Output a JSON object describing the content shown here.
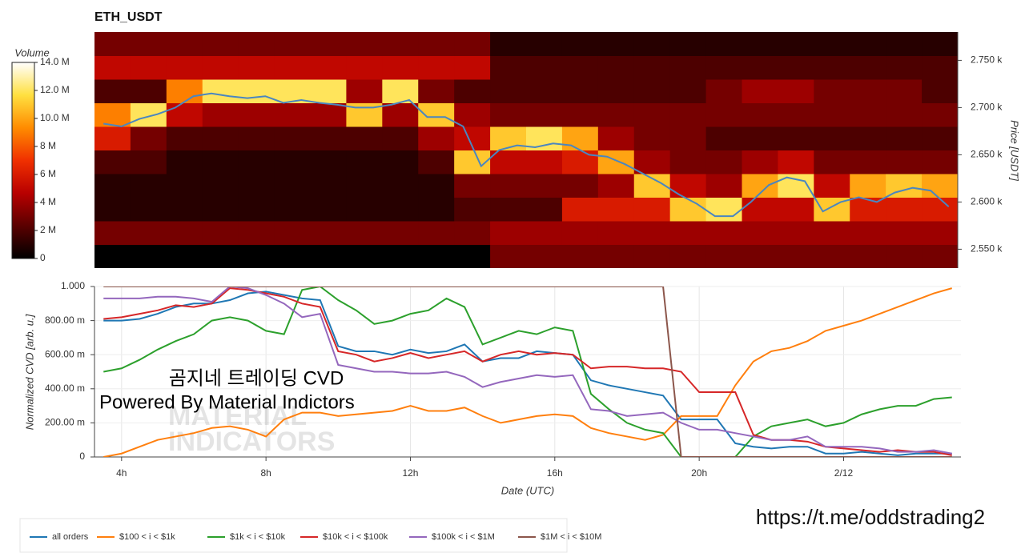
{
  "chart_data": [
    {
      "type": "heatmap",
      "title": "ETH_USDT",
      "y_label": "Price [USDT]",
      "xlim": [
        3.25,
        27.25
      ],
      "ylim": [
        2530,
        2780
      ],
      "yticks": [
        {
          "value": 2550,
          "label": "2.550 k"
        },
        {
          "value": 2600,
          "label": "2.600 k"
        },
        {
          "value": 2650,
          "label": "2.650 k"
        },
        {
          "value": 2700,
          "label": "2.700 k"
        },
        {
          "value": 2750,
          "label": "2.750 k"
        }
      ],
      "x_bins": [
        3.25,
        4.25,
        5.25,
        6.25,
        7.25,
        8.25,
        9.25,
        10.25,
        11.25,
        12.25,
        13.25,
        14.25,
        15.25,
        16.25,
        17.25,
        18.25,
        19.25,
        20.25,
        21.25,
        22.25,
        23.25,
        24.25,
        25.25,
        26.25,
        27.25
      ],
      "y_bins": [
        2530,
        2555,
        2580,
        2605,
        2630,
        2655,
        2680,
        2705,
        2730,
        2755,
        2780
      ],
      "values": [
        [
          0,
          0,
          0,
          0,
          0,
          0,
          0,
          0,
          0,
          0,
          0,
          3,
          3,
          3,
          3,
          3,
          3,
          3,
          3,
          3,
          3,
          3,
          3,
          3
        ],
        [
          3,
          3,
          3,
          3,
          3,
          3,
          3,
          3,
          3,
          3,
          3,
          4,
          4,
          4,
          4,
          4,
          4,
          4,
          4,
          4,
          4,
          4,
          4,
          4
        ],
        [
          1,
          1,
          1,
          1,
          1,
          1,
          1,
          1,
          1,
          1,
          2,
          2,
          2,
          6,
          6,
          6,
          11,
          12,
          5,
          5,
          11,
          6,
          6,
          6
        ],
        [
          1,
          1,
          1,
          1,
          1,
          1,
          1,
          1,
          1,
          1,
          3,
          3,
          3,
          3,
          4,
          11,
          5,
          4,
          10,
          12,
          5,
          10,
          11,
          10
        ],
        [
          2,
          2,
          1,
          1,
          1,
          1,
          1,
          1,
          1,
          2,
          11,
          5,
          5,
          6,
          10,
          4,
          3,
          3,
          4,
          5,
          3,
          3,
          3,
          3
        ],
        [
          6,
          3,
          2,
          2,
          2,
          2,
          2,
          2,
          2,
          4,
          5,
          11,
          12,
          10,
          4,
          3,
          3,
          2,
          2,
          2,
          2,
          2,
          2,
          2
        ],
        [
          9,
          12,
          5,
          4,
          4,
          4,
          4,
          11,
          4,
          11,
          4,
          3,
          3,
          3,
          3,
          3,
          3,
          3,
          3,
          3,
          3,
          3,
          3,
          3
        ],
        [
          2,
          2,
          9,
          12,
          12,
          12,
          12,
          4,
          12,
          3,
          2,
          2,
          2,
          2,
          2,
          2,
          2,
          3,
          4,
          4,
          3,
          3,
          3,
          2
        ],
        [
          5,
          5,
          5,
          5,
          5,
          5,
          5,
          5,
          5,
          5,
          5,
          2,
          2,
          2,
          2,
          2,
          2,
          2,
          2,
          2,
          2,
          2,
          2,
          2
        ],
        [
          3,
          3,
          3,
          3,
          3,
          3,
          3,
          3,
          3,
          3,
          3,
          1,
          1,
          1,
          1,
          1,
          1,
          1,
          1,
          1,
          1,
          1,
          1,
          1
        ]
      ],
      "colorbar_title": "Volume",
      "zlim": [
        0,
        14
      ],
      "zticks": [
        0,
        {
          "value": 2,
          "label": "2 M"
        },
        {
          "value": 4,
          "label": "4 M"
        },
        {
          "value": 6,
          "label": "6 M"
        },
        {
          "value": 8,
          "label": "8 M"
        },
        {
          "value": 10,
          "label": "10.0 M"
        },
        {
          "value": 12,
          "label": "12.0 M"
        },
        {
          "value": 14,
          "label": "14.0 M"
        }
      ],
      "colorscale": [
        "#000000",
        "#5a0000",
        "#b80000",
        "#f03000",
        "#ff8c00",
        "#ffe040",
        "#ffffff"
      ],
      "price": {
        "color": "#4a86c0",
        "x": [
          3.5,
          4,
          4.5,
          5,
          5.5,
          6,
          6.5,
          7,
          7.5,
          8,
          8.5,
          9,
          9.5,
          10,
          10.5,
          11,
          11.5,
          12,
          12.5,
          13,
          13.5,
          14,
          14.5,
          15,
          15.5,
          16,
          16.5,
          17,
          17.5,
          18,
          18.5,
          19,
          19.5,
          20,
          20.5,
          21,
          21.5,
          22,
          22.5,
          23,
          23.5,
          24,
          24.5,
          25,
          25.5,
          26,
          26.5,
          27
        ],
        "values": [
          2683,
          2680,
          2688,
          2693,
          2700,
          2712,
          2715,
          2712,
          2710,
          2712,
          2705,
          2708,
          2705,
          2703,
          2700,
          2700,
          2703,
          2708,
          2690,
          2690,
          2680,
          2638,
          2655,
          2660,
          2658,
          2662,
          2660,
          2650,
          2648,
          2640,
          2630,
          2620,
          2608,
          2598,
          2585,
          2585,
          2600,
          2618,
          2626,
          2622,
          2590,
          2600,
          2605,
          2600,
          2610,
          2615,
          2612,
          2595
        ]
      }
    },
    {
      "type": "line",
      "x_label": "Date (UTC)",
      "y_label": "Normalized CVD [arb. u.]",
      "grid": true,
      "xlim": [
        3.25,
        27.25
      ],
      "ylim": [
        0,
        1
      ],
      "xticks": [
        {
          "value": 4,
          "label": "4h"
        },
        {
          "value": 8,
          "label": "8h"
        },
        {
          "value": 12,
          "label": "12h"
        },
        {
          "value": 16,
          "label": "16h"
        },
        {
          "value": 20,
          "label": "20h"
        },
        {
          "value": 24,
          "label": "2/12"
        }
      ],
      "yticks": [
        0,
        {
          "value": 0.2,
          "label": "200.00 m"
        },
        {
          "value": 0.4,
          "label": "400.00 m"
        },
        {
          "value": 0.6,
          "label": "600.00 m"
        },
        {
          "value": 0.8,
          "label": "800.00 m"
        },
        {
          "value": 1,
          "label": "1.000"
        }
      ],
      "x": [
        3.5,
        4,
        4.5,
        5,
        5.5,
        6,
        6.5,
        7,
        7.5,
        8,
        8.5,
        9,
        9.5,
        10,
        10.5,
        11,
        11.5,
        12,
        12.5,
        13,
        13.5,
        14,
        14.5,
        15,
        15.5,
        16,
        16.5,
        17,
        17.5,
        18,
        18.5,
        19,
        19.5,
        20,
        20.5,
        21,
        21.5,
        22,
        22.5,
        23,
        23.5,
        24,
        24.5,
        25,
        25.5,
        26,
        26.5,
        27
      ],
      "series": [
        {
          "name": "all orders",
          "color": "#1f77b4",
          "values": [
            0.8,
            0.8,
            0.81,
            0.84,
            0.88,
            0.9,
            0.9,
            0.92,
            0.96,
            0.97,
            0.95,
            0.93,
            0.92,
            0.65,
            0.62,
            0.62,
            0.6,
            0.63,
            0.61,
            0.62,
            0.66,
            0.56,
            0.58,
            0.58,
            0.62,
            0.61,
            0.6,
            0.45,
            0.42,
            0.4,
            0.38,
            0.36,
            0.22,
            0.22,
            0.22,
            0.08,
            0.06,
            0.05,
            0.06,
            0.06,
            0.02,
            0.02,
            0.03,
            0.02,
            0.01,
            0.02,
            0.02,
            0.02
          ]
        },
        {
          "name": "$100 < i < $1k",
          "color": "#ff7f0e",
          "values": [
            0,
            0.02,
            0.06,
            0.1,
            0.12,
            0.14,
            0.17,
            0.18,
            0.16,
            0.12,
            0.22,
            0.26,
            0.26,
            0.24,
            0.25,
            0.26,
            0.27,
            0.3,
            0.27,
            0.27,
            0.29,
            0.24,
            0.2,
            0.22,
            0.24,
            0.25,
            0.24,
            0.17,
            0.14,
            0.12,
            0.1,
            0.13,
            0.24,
            0.24,
            0.24,
            0.42,
            0.56,
            0.62,
            0.64,
            0.68,
            0.74,
            0.77,
            0.8,
            0.84,
            0.88,
            0.92,
            0.96,
            0.99
          ]
        },
        {
          "name": "$1k < i < $10k",
          "color": "#2ca02c",
          "values": [
            0.5,
            0.52,
            0.57,
            0.63,
            0.68,
            0.72,
            0.8,
            0.82,
            0.8,
            0.74,
            0.72,
            0.98,
            1,
            0.92,
            0.86,
            0.78,
            0.8,
            0.84,
            0.86,
            0.93,
            0.88,
            0.66,
            0.7,
            0.74,
            0.72,
            0.76,
            0.74,
            0.37,
            0.28,
            0.2,
            0.16,
            0.14,
            0,
            0,
            0,
            0,
            0.12,
            0.18,
            0.2,
            0.22,
            0.18,
            0.2,
            0.25,
            0.28,
            0.3,
            0.3,
            0.34,
            0.35
          ]
        },
        {
          "name": "$10k < i < $100k",
          "color": "#d62728",
          "values": [
            0.81,
            0.82,
            0.84,
            0.86,
            0.89,
            0.88,
            0.9,
            0.99,
            0.98,
            0.96,
            0.94,
            0.9,
            0.88,
            0.62,
            0.6,
            0.56,
            0.58,
            0.61,
            0.58,
            0.6,
            0.62,
            0.56,
            0.6,
            0.62,
            0.6,
            0.61,
            0.6,
            0.52,
            0.53,
            0.53,
            0.52,
            0.52,
            0.5,
            0.38,
            0.38,
            0.38,
            0.13,
            0.1,
            0.1,
            0.09,
            0.06,
            0.05,
            0.04,
            0.03,
            0.04,
            0.03,
            0.03,
            0.01
          ]
        },
        {
          "name": "$100k < i < $1M",
          "color": "#9467bd",
          "values": [
            0.93,
            0.93,
            0.93,
            0.94,
            0.94,
            0.93,
            0.91,
            1,
            0.99,
            0.95,
            0.9,
            0.82,
            0.84,
            0.54,
            0.52,
            0.5,
            0.5,
            0.49,
            0.49,
            0.5,
            0.47,
            0.41,
            0.44,
            0.46,
            0.48,
            0.47,
            0.48,
            0.28,
            0.27,
            0.24,
            0.25,
            0.26,
            0.2,
            0.16,
            0.16,
            0.14,
            0.12,
            0.1,
            0.1,
            0.12,
            0.06,
            0.06,
            0.06,
            0.05,
            0.03,
            0.03,
            0.04,
            0.02
          ]
        },
        {
          "name": "$1M < i < $10M",
          "color": "#8c564b",
          "values": [
            1,
            1,
            1,
            1,
            1,
            1,
            1,
            1,
            1,
            1,
            1,
            1,
            1,
            1,
            1,
            1,
            1,
            1,
            1,
            1,
            1,
            1,
            1,
            1,
            1,
            1,
            1,
            1,
            1,
            1,
            1,
            1,
            0,
            0,
            0,
            0,
            0,
            0,
            0,
            0,
            0,
            0,
            0,
            0,
            0,
            0,
            0,
            0
          ]
        }
      ],
      "annotations": [
        "곰지네 트레이딩 CVD",
        "Powered By Material Indictors"
      ],
      "watermark": [
        "MATERIAL",
        "INDICATORS"
      ]
    }
  ],
  "link": "https://t.me/oddstrading2"
}
